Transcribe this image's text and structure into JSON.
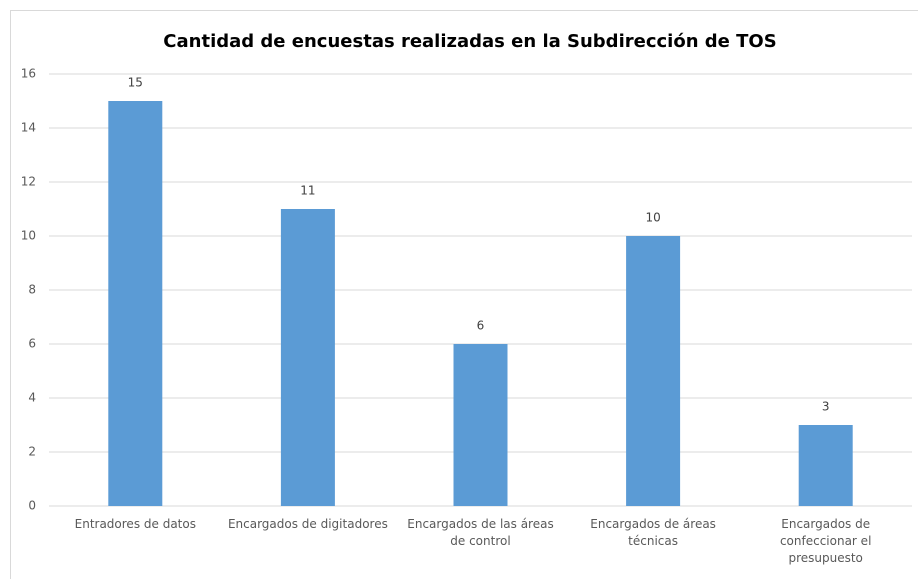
{
  "chart_data": {
    "type": "bar",
    "title": "Cantidad de encuestas realizadas en la Subdirección de TOS",
    "categories": [
      "Entradores de datos",
      "Encargados de digitadores",
      "Encargados de las áreas de control",
      "Encargados de áreas técnicas",
      "Encargados de confeccionar el presupuesto"
    ],
    "values": [
      15,
      11,
      6,
      10,
      3
    ],
    "color": "#5b9bd5",
    "ylim": [
      0,
      16
    ],
    "yticks": [
      0,
      2,
      4,
      6,
      8,
      10,
      12,
      14,
      16
    ],
    "grid": true
  }
}
